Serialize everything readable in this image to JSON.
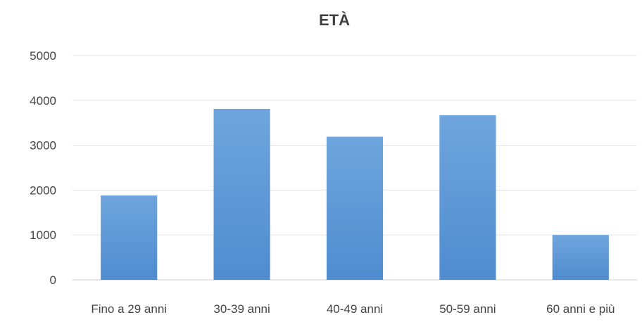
{
  "chart_data": {
    "type": "bar",
    "title": "ETÀ",
    "categories": [
      "Fino a 29 anni",
      "30-39 anni",
      "40-49 anni",
      "50-59 anni",
      "60 anni e più"
    ],
    "values": [
      1880,
      3810,
      3190,
      3670,
      1000
    ],
    "ylim": [
      0,
      5000
    ],
    "yticks": [
      0,
      1000,
      2000,
      3000,
      4000,
      5000
    ],
    "xlabel": "",
    "ylabel": "",
    "grid": true,
    "legend": "none",
    "colors": {
      "bar_top": "#6fa5dd",
      "bar_bottom": "#4f8ccf",
      "grid": "#e3e3e3",
      "axis": "#cfcfcf",
      "text": "#444444",
      "title": "#3f3f3f"
    }
  }
}
